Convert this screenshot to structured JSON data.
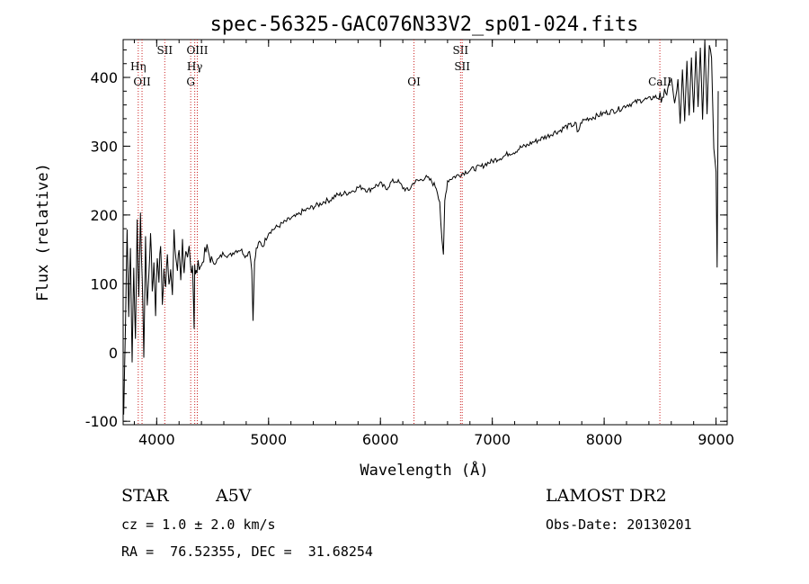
{
  "chart_data": {
    "type": "line",
    "title": "spec-56325-GAC076N33V2_sp01-024.fits",
    "xlabel": "Wavelength (Å)",
    "ylabel": "Flux (relative)",
    "xlim": [
      3700,
      9100
    ],
    "ylim": [
      -105,
      455
    ],
    "x_ticks": [
      4000,
      5000,
      6000,
      7000,
      8000,
      9000
    ],
    "y_ticks": [
      -100,
      0,
      100,
      200,
      300,
      400
    ],
    "grid": false,
    "line_color": "#000000",
    "marker_color": "#cc2222",
    "spectrum_x": [
      3705,
      3720,
      3735,
      3750,
      3765,
      3780,
      3795,
      3810,
      3825,
      3840,
      3855,
      3870,
      3885,
      3900,
      3915,
      3930,
      3945,
      3960,
      3975,
      3990,
      4005,
      4020,
      4035,
      4050,
      4065,
      4080,
      4095,
      4110,
      4125,
      4140,
      4155,
      4170,
      4185,
      4200,
      4215,
      4230,
      4245,
      4260,
      4275,
      4290,
      4305,
      4320,
      4335,
      4340,
      4345,
      4360,
      4380,
      4400,
      4420,
      4450,
      4500,
      4550,
      4600,
      4650,
      4700,
      4750,
      4800,
      4830,
      4850,
      4861,
      4875,
      4890,
      4920,
      4950,
      5000,
      5050,
      5100,
      5150,
      5200,
      5250,
      5300,
      5350,
      5400,
      5450,
      5500,
      5550,
      5600,
      5650,
      5700,
      5750,
      5800,
      5850,
      5890,
      5950,
      6000,
      6050,
      6100,
      6150,
      6200,
      6250,
      6300,
      6350,
      6400,
      6450,
      6500,
      6530,
      6550,
      6563,
      6575,
      6600,
      6650,
      6700,
      6750,
      6800,
      6850,
      6900,
      6950,
      7000,
      7050,
      7100,
      7150,
      7200,
      7250,
      7300,
      7350,
      7400,
      7450,
      7500,
      7550,
      7600,
      7650,
      7700,
      7750,
      7760,
      7800,
      7850,
      7900,
      7950,
      8000,
      8050,
      8100,
      8150,
      8200,
      8250,
      8300,
      8350,
      8400,
      8450,
      8490,
      8500,
      8510,
      8530,
      8540,
      8560,
      8580,
      8600,
      8630,
      8660,
      8680,
      8700,
      8720,
      8740,
      8760,
      8780,
      8800,
      8820,
      8840,
      8860,
      8880,
      8900,
      8920,
      8940,
      8960,
      8980,
      9000,
      9010,
      9020
    ],
    "spectrum_y": [
      -90,
      40,
      180,
      60,
      150,
      -10,
      120,
      20,
      190,
      80,
      210,
      100,
      0,
      160,
      70,
      110,
      180,
      90,
      130,
      60,
      140,
      110,
      160,
      70,
      120,
      90,
      150,
      100,
      130,
      80,
      170,
      140,
      120,
      150,
      110,
      160,
      120,
      140,
      130,
      150,
      120,
      130,
      40,
      130,
      110,
      120,
      130,
      125,
      140,
      150,
      130,
      135,
      145,
      140,
      148,
      150,
      140,
      150,
      120,
      50,
      130,
      150,
      160,
      155,
      175,
      180,
      185,
      190,
      195,
      198,
      205,
      208,
      212,
      215,
      220,
      222,
      228,
      230,
      232,
      235,
      240,
      240,
      235,
      242,
      245,
      238,
      248,
      250,
      240,
      235,
      248,
      250,
      255,
      250,
      240,
      220,
      160,
      140,
      220,
      250,
      255,
      258,
      262,
      265,
      268,
      270,
      275,
      278,
      282,
      285,
      290,
      292,
      298,
      300,
      305,
      308,
      312,
      315,
      320,
      322,
      328,
      330,
      332,
      318,
      336,
      340,
      342,
      345,
      348,
      350,
      352,
      355,
      360,
      362,
      365,
      368,
      368,
      372,
      370,
      380,
      360,
      375,
      385,
      372,
      390,
      400,
      360,
      395,
      330,
      410,
      340,
      420,
      345,
      430,
      350,
      440,
      360,
      445,
      340,
      455,
      350,
      450,
      430,
      300,
      260,
      120,
      380
    ],
    "lines": [
      {
        "wavelength": 3835,
        "labels": [
          "Hη"
        ]
      },
      {
        "wavelength": 3869,
        "labels": [
          "OII"
        ]
      },
      {
        "wavelength": 4072,
        "labels": [
          "SII"
        ]
      },
      {
        "wavelength": 4304,
        "labels": [
          "G"
        ]
      },
      {
        "wavelength": 4340,
        "labels": [
          "Hγ"
        ]
      },
      {
        "wavelength": 4363,
        "labels": [
          "OIII"
        ]
      },
      {
        "wavelength": 6300,
        "labels": [
          "OI"
        ]
      },
      {
        "wavelength": 6716,
        "labels": [
          "SII"
        ]
      },
      {
        "wavelength": 6731,
        "labels": [
          "SII"
        ]
      },
      {
        "wavelength": 8498,
        "labels": [
          "CaII"
        ]
      }
    ]
  },
  "info": {
    "object_class": "STAR",
    "subclass": "A5V",
    "survey": "LAMOST DR2",
    "cz": "cz = 1.0 ± 2.0 km/s",
    "obs_date": "Obs-Date: 20130201",
    "coords": "RA =  76.52355, DEC =  31.68254"
  }
}
